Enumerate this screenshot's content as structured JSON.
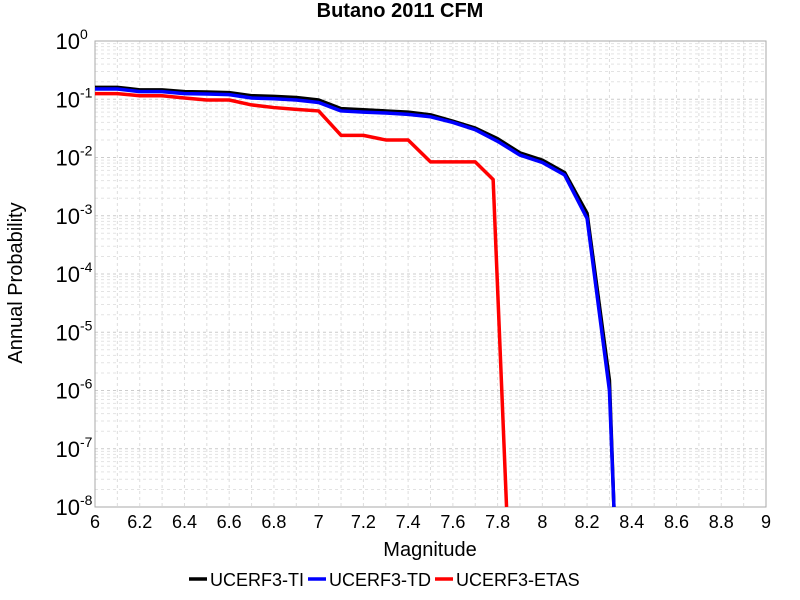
{
  "chart_data": {
    "type": "line",
    "title": "Butano 2011 CFM",
    "xlabel": "Magnitude",
    "ylabel": "Annual Probability",
    "xlim": [
      6,
      9
    ],
    "ylim": [
      1e-08,
      1
    ],
    "yscale": "log",
    "grid": true,
    "legend_position": "bottom",
    "xticks": [
      "6",
      "6.2",
      "6.4",
      "6.6",
      "6.8",
      "7",
      "7.2",
      "7.4",
      "7.6",
      "7.8",
      "8",
      "8.2",
      "8.4",
      "8.6",
      "8.8",
      "9"
    ],
    "yticks": [
      {
        "base": "10",
        "exp": "0"
      },
      {
        "base": "10",
        "exp": "-1"
      },
      {
        "base": "10",
        "exp": "-2"
      },
      {
        "base": "10",
        "exp": "-3"
      },
      {
        "base": "10",
        "exp": "-4"
      },
      {
        "base": "10",
        "exp": "-5"
      },
      {
        "base": "10",
        "exp": "-6"
      },
      {
        "base": "10",
        "exp": "-7"
      },
      {
        "base": "10",
        "exp": "-8"
      }
    ],
    "series": [
      {
        "name": "UCERF3-TI",
        "color": "#000000",
        "x": [
          6.0,
          6.1,
          6.2,
          6.3,
          6.4,
          6.5,
          6.6,
          6.7,
          6.8,
          6.9,
          7.0,
          7.1,
          7.2,
          7.3,
          7.4,
          7.5,
          7.6,
          7.7,
          7.8,
          7.9,
          8.0,
          8.1,
          8.2,
          8.3,
          8.32
        ],
        "y": [
          0.16,
          0.16,
          0.145,
          0.145,
          0.135,
          0.133,
          0.13,
          0.115,
          0.112,
          0.107,
          0.097,
          0.069,
          0.066,
          0.063,
          0.06,
          0.054,
          0.042,
          0.032,
          0.021,
          0.012,
          0.009,
          0.0055,
          0.0011,
          1.5e-06,
          1e-08
        ]
      },
      {
        "name": "UCERF3-TD",
        "color": "#0000ff",
        "x": [
          6.0,
          6.1,
          6.2,
          6.3,
          6.4,
          6.5,
          6.6,
          6.7,
          6.8,
          6.9,
          7.0,
          7.1,
          7.2,
          7.3,
          7.4,
          7.5,
          7.6,
          7.7,
          7.8,
          7.9,
          8.0,
          8.1,
          8.2,
          8.3,
          8.32
        ],
        "y": [
          0.15,
          0.15,
          0.135,
          0.135,
          0.125,
          0.123,
          0.12,
          0.105,
          0.102,
          0.097,
          0.088,
          0.063,
          0.06,
          0.058,
          0.055,
          0.05,
          0.04,
          0.03,
          0.019,
          0.011,
          0.0082,
          0.005,
          0.0009,
          1e-06,
          1e-08
        ]
      },
      {
        "name": "UCERF3-ETAS",
        "color": "#ff0000",
        "x": [
          6.0,
          6.1,
          6.2,
          6.3,
          6.4,
          6.5,
          6.6,
          6.7,
          6.8,
          6.9,
          7.0,
          7.1,
          7.2,
          7.3,
          7.4,
          7.5,
          7.6,
          7.7,
          7.78,
          7.84
        ],
        "y": [
          0.125,
          0.125,
          0.115,
          0.115,
          0.105,
          0.097,
          0.097,
          0.08,
          0.072,
          0.067,
          0.063,
          0.024,
          0.024,
          0.02,
          0.02,
          0.0084,
          0.0084,
          0.0084,
          0.0042,
          1e-08
        ]
      }
    ]
  }
}
